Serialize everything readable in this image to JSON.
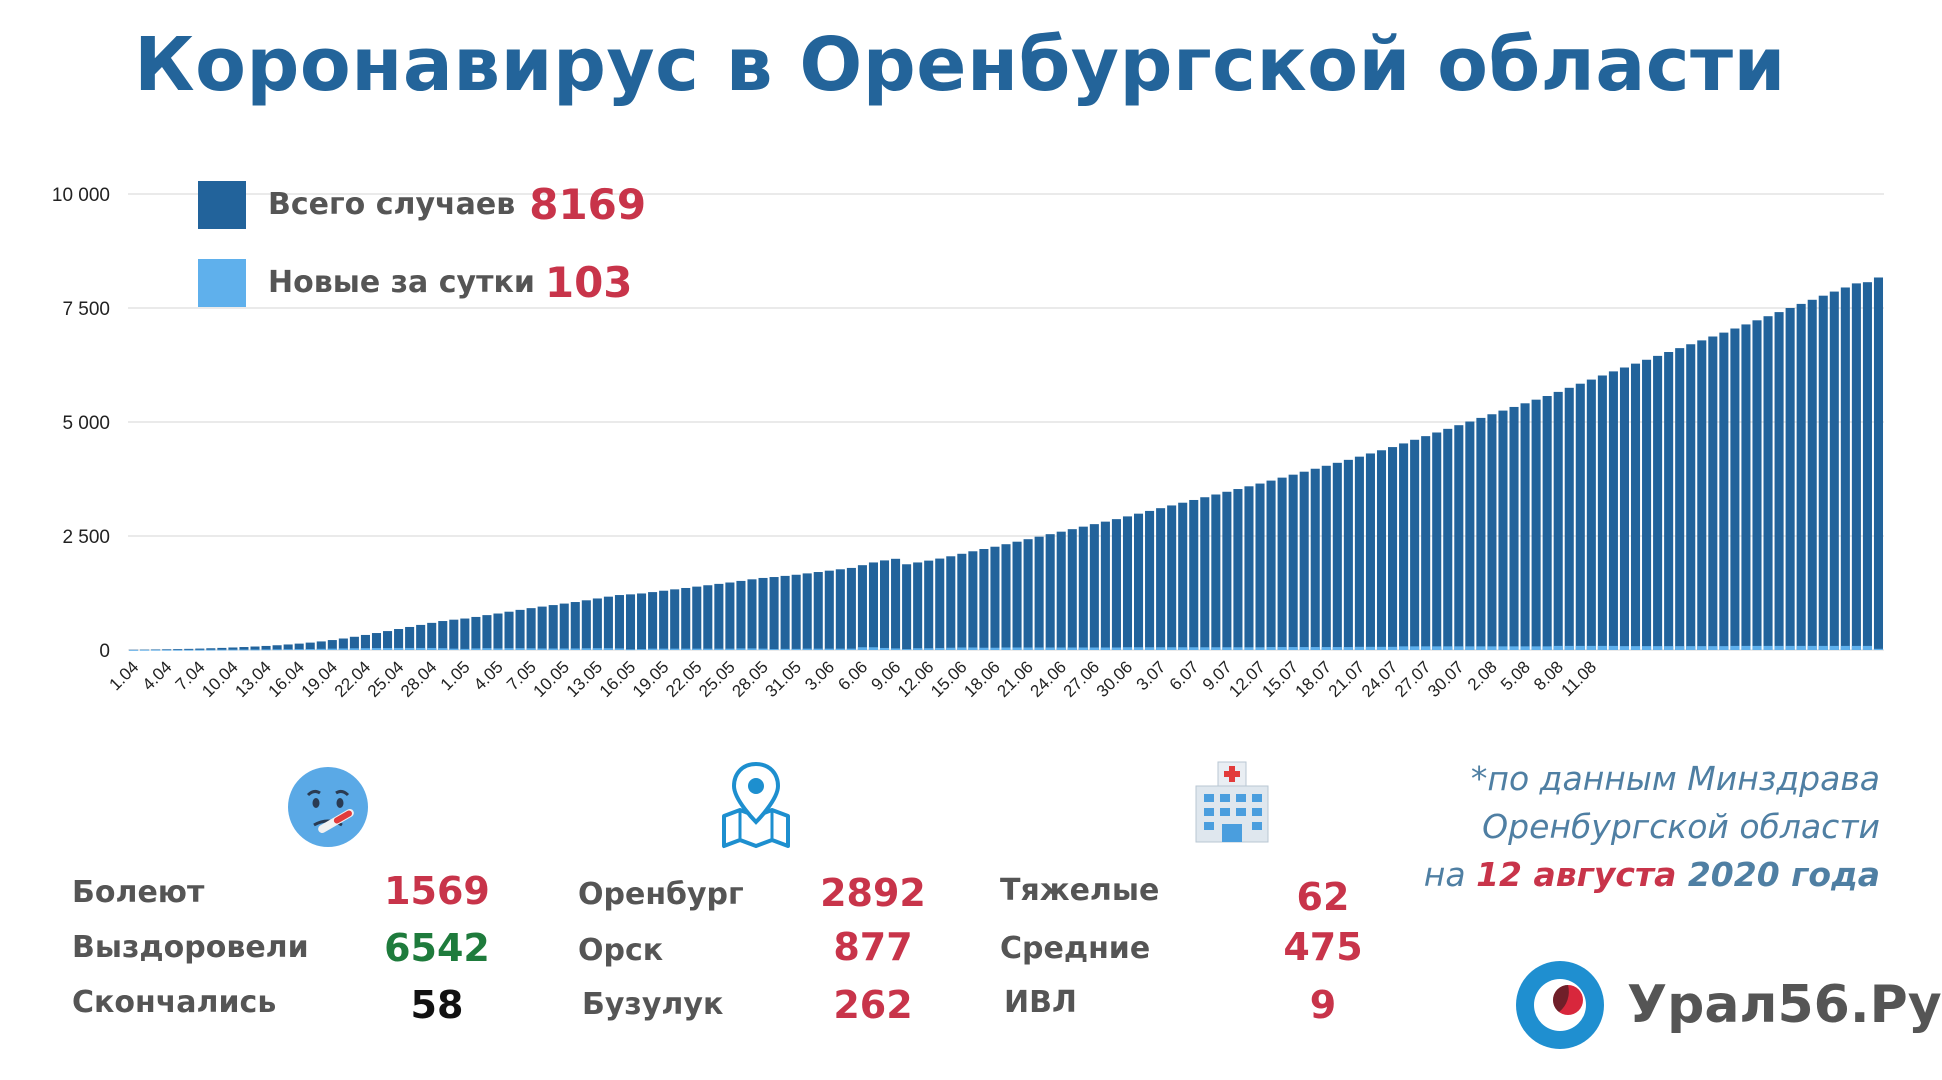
{
  "title": "Коронавирус в Оренбургской области",
  "legend": {
    "total_label": "Всего случаев",
    "total_value": "8169",
    "new_label": "Новые за сутки",
    "new_value": "103"
  },
  "colors": {
    "title": "#23649a",
    "bar_total": "#22639b",
    "bar_new": "#5fb0ec",
    "accent_red": "#c8344a",
    "accent_green": "#1e7b3c",
    "label_gray": "#555555"
  },
  "chart_data": {
    "type": "bar",
    "ylim": [
      0,
      10000
    ],
    "y_ticks": [
      "0",
      "2 500",
      "5 000",
      "7 500",
      "10 000"
    ],
    "y_tick_values": [
      0,
      2500,
      5000,
      7500,
      10000
    ],
    "x_tick_labels": [
      "1.04",
      "4.04",
      "7.04",
      "10.04",
      "13.04",
      "16.04",
      "19.04",
      "22.04",
      "25.04",
      "28.04",
      "1.05",
      "4.05",
      "7.05",
      "10.05",
      "13.05",
      "16.05",
      "19.05",
      "22.05",
      "25.05",
      "28.05",
      "31.05",
      "3.06",
      "6.06",
      "9.06",
      "12.06",
      "15.06",
      "18.06",
      "21.06",
      "24.06",
      "27.06",
      "30.06",
      "3.07",
      "6.07",
      "9.07",
      "12.07",
      "15.07",
      "18.07",
      "21.07",
      "24.07",
      "27.07",
      "30.07",
      "2.08",
      "5.08",
      "8.08",
      "11.08"
    ],
    "grid": true,
    "legend_position": "top-left",
    "series": [
      {
        "name": "Всего случаев",
        "values": [
          5,
          8,
          12,
          16,
          20,
          25,
          31,
          38,
          46,
          55,
          65,
          76,
          89,
          104,
          121,
          140,
          162,
          188,
          218,
          252,
          290,
          330,
          372,
          415,
          460,
          505,
          550,
          595,
          635,
          665,
          690,
          725,
          765,
          800,
          840,
          880,
          918,
          952,
          985,
          1018,
          1052,
          1090,
          1130,
          1170,
          1205,
          1220,
          1240,
          1270,
          1300,
          1330,
          1360,
          1390,
          1420,
          1450,
          1480,
          1515,
          1550,
          1580,
          1600,
          1625,
          1650,
          1680,
          1710,
          1740,
          1770,
          1800,
          1860,
          1920,
          1965,
          2000,
          1880,
          1920,
          1960,
          2005,
          2055,
          2110,
          2165,
          2215,
          2265,
          2320,
          2375,
          2430,
          2485,
          2540,
          2595,
          2650,
          2705,
          2760,
          2815,
          2870,
          2930,
          2990,
          3050,
          3110,
          3170,
          3230,
          3290,
          3350,
          3410,
          3470,
          3530,
          3590,
          3650,
          3715,
          3780,
          3845,
          3910,
          3975,
          4040,
          4105,
          4170,
          4240,
          4310,
          4380,
          4450,
          4530,
          4610,
          4690,
          4770,
          4850,
          4930,
          5010,
          5090,
          5170,
          5250,
          5330,
          5410,
          5490,
          5570,
          5660,
          5750,
          5840,
          5930,
          6020,
          6110,
          6195,
          6280,
          6365,
          6450,
          6535,
          6620,
          6705,
          6790,
          6875,
          6960,
          7050,
          7140,
          7230,
          7320,
          7410,
          7500,
          7590,
          7680,
          7770,
          7860,
          7950,
          8040,
          8066,
          8169
        ]
      },
      {
        "name": "Новые за сутки",
        "values": [
          1,
          3,
          4,
          4,
          4,
          5,
          6,
          7,
          8,
          9,
          10,
          11,
          13,
          15,
          17,
          19,
          22,
          26,
          30,
          34,
          38,
          40,
          42,
          43,
          45,
          45,
          45,
          45,
          40,
          30,
          25,
          35,
          40,
          35,
          40,
          40,
          38,
          34,
          33,
          33,
          34,
          38,
          40,
          40,
          35,
          15,
          20,
          30,
          30,
          30,
          30,
          30,
          30,
          30,
          30,
          35,
          35,
          30,
          20,
          25,
          25,
          30,
          30,
          30,
          30,
          30,
          60,
          60,
          45,
          35,
          20,
          40,
          40,
          45,
          50,
          55,
          55,
          50,
          50,
          55,
          55,
          55,
          55,
          55,
          55,
          55,
          55,
          55,
          55,
          55,
          60,
          60,
          60,
          60,
          60,
          60,
          60,
          60,
          60,
          60,
          60,
          60,
          60,
          65,
          65,
          65,
          65,
          65,
          65,
          65,
          65,
          70,
          70,
          70,
          70,
          80,
          80,
          80,
          80,
          80,
          80,
          80,
          80,
          80,
          80,
          80,
          80,
          80,
          80,
          90,
          90,
          90,
          90,
          90,
          90,
          85,
          85,
          85,
          85,
          85,
          85,
          85,
          85,
          85,
          85,
          90,
          90,
          90,
          90,
          90,
          90,
          90,
          90,
          90,
          90,
          90,
          90,
          90,
          26,
          103
        ]
      }
    ]
  },
  "stats": {
    "col1": {
      "icon": "sick-face-thermometer-icon",
      "rows": [
        {
          "label": "Болеют",
          "value": "1569",
          "color": "#c8344a"
        },
        {
          "label": "Выздоровели",
          "value": "6542",
          "color": "#1e7b3c"
        },
        {
          "label": "Скончались",
          "value": "58",
          "color": "#111111"
        }
      ]
    },
    "col2": {
      "icon": "map-pin-icon",
      "rows": [
        {
          "label": "Оренбург",
          "value": "2892",
          "color": "#c8344a"
        },
        {
          "label": "Орск",
          "value": "877",
          "color": "#c8344a"
        },
        {
          "label": "Бузулук",
          "value": "262",
          "color": "#c8344a"
        }
      ]
    },
    "col3": {
      "icon": "hospital-icon",
      "rows": [
        {
          "label": "Тяжелые",
          "value": "62",
          "color": "#c8344a"
        },
        {
          "label": "Средние",
          "value": "475",
          "color": "#c8344a"
        },
        {
          "label": "ИВЛ",
          "value": "9",
          "color": "#c8344a"
        }
      ]
    }
  },
  "source": {
    "line1": "*по данным Минздрава",
    "line2": "Оренбургской области",
    "line3_prefix": "на ",
    "line3_date": "12 августа",
    "line3_year": " 2020 года"
  },
  "brand": {
    "name": "Урал56.Ру",
    "logo_icon": "ural56-logo-icon"
  }
}
